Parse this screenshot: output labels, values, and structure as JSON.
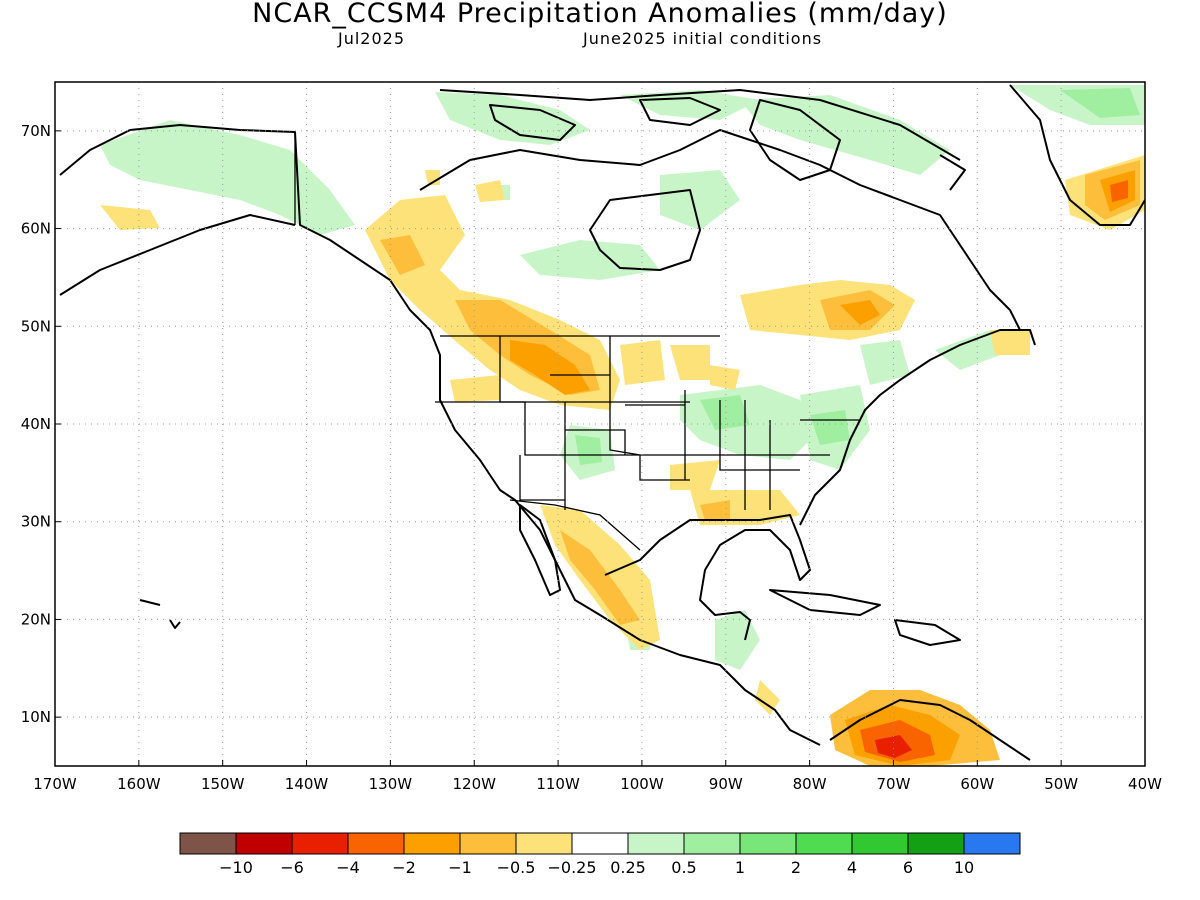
{
  "header": {
    "title": "NCAR_CCSM4 Precipitation Anomalies (mm/day)",
    "valid_month": "Jul2025",
    "init": "June2025 initial conditions"
  },
  "axes": {
    "lat_labels": [
      "70N",
      "60N",
      "50N",
      "40N",
      "30N",
      "20N",
      "10N"
    ],
    "lat_values": [
      70,
      60,
      50,
      40,
      30,
      20,
      10
    ],
    "lon_labels": [
      "170W",
      "160W",
      "150W",
      "140W",
      "130W",
      "120W",
      "110W",
      "100W",
      "90W",
      "80W",
      "70W",
      "60W",
      "50W",
      "40W"
    ],
    "lon_values": [
      -170,
      -160,
      -150,
      -140,
      -130,
      -120,
      -110,
      -100,
      -90,
      -80,
      -70,
      -60,
      -50,
      -40
    ],
    "lon_range": [
      -170,
      -40
    ],
    "lat_range": [
      5,
      75
    ],
    "grid": "dotted"
  },
  "colorbar": {
    "colors": [
      "#7f5448",
      "#c00000",
      "#e82000",
      "#fa6400",
      "#fca000",
      "#fdbe3c",
      "#fde27a",
      "#ffffff",
      "#c8f5c8",
      "#a0eea0",
      "#78e678",
      "#50dc50",
      "#32c832",
      "#14a014",
      "#2878f0"
    ],
    "labels": [
      "−10",
      "−6",
      "−4",
      "−2",
      "−1",
      "−0.5",
      "−0.25",
      "0.25",
      "0.5",
      "1",
      "2",
      "4",
      "6",
      "10"
    ]
  }
}
